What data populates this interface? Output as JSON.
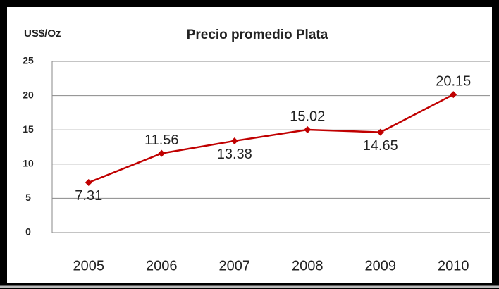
{
  "chart_data": {
    "type": "line",
    "title": "Precio promedio Plata",
    "y_label": "US$/Oz",
    "categories": [
      "2005",
      "2006",
      "2007",
      "2008",
      "2009",
      "2010"
    ],
    "values": [
      7.31,
      11.56,
      13.38,
      15.02,
      14.65,
      20.15
    ],
    "color": "#c00000",
    "ylim": [
      0,
      25
    ],
    "yticks": [
      0,
      5,
      10,
      15,
      20,
      25
    ],
    "grid": true
  }
}
